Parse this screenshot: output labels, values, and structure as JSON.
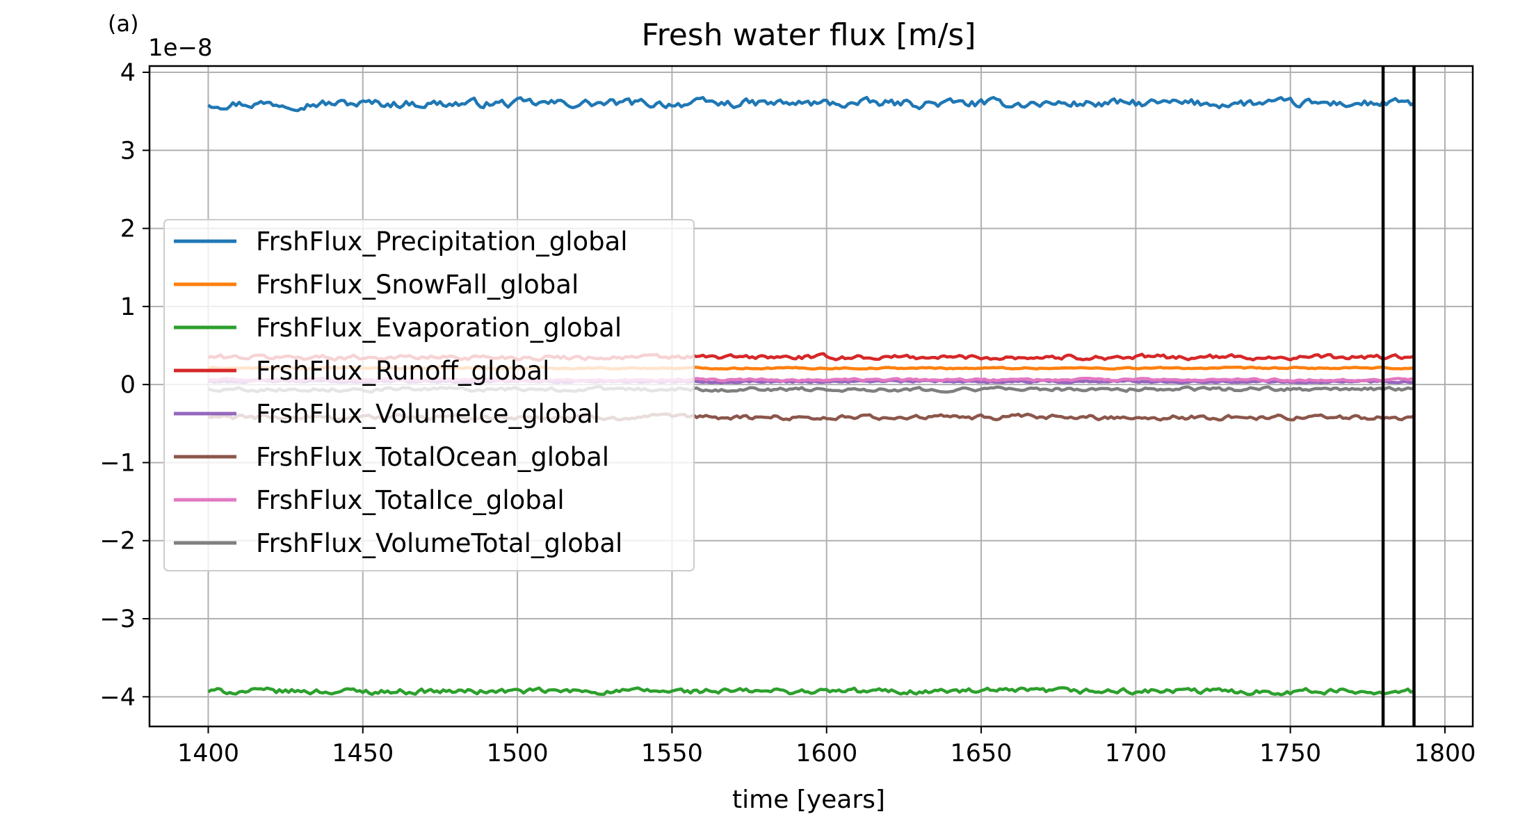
{
  "chart_data": {
    "type": "line",
    "panel_label": "(a)",
    "title": "Fresh water flux [m/s]",
    "xlabel": "time [years]",
    "ylabel": "",
    "offset_text": "1e−8",
    "xlim": [
      1381,
      1809
    ],
    "ylim": [
      -4.38,
      4.08
    ],
    "y_scale_note": "values in units of 1e-8",
    "xticks": [
      1400,
      1450,
      1500,
      1550,
      1600,
      1650,
      1700,
      1750,
      1800
    ],
    "xtick_labels": [
      "1400",
      "1450",
      "1500",
      "1550",
      "1600",
      "1650",
      "1700",
      "1750",
      "1800"
    ],
    "yticks": [
      4,
      3,
      2,
      1,
      0,
      -1,
      -2,
      -3,
      -4
    ],
    "ytick_labels": [
      "4",
      "3",
      "2",
      "1",
      "0",
      "−1",
      "−2",
      "−3",
      "−4"
    ],
    "grid": true,
    "legend_position": "center-left",
    "x_range": [
      1400,
      1790
    ],
    "vertical_lines": [
      1780,
      1790
    ],
    "series": [
      {
        "name": "FrshFlux_Precipitation_global",
        "color": "#1f77b4",
        "mean": 3.6,
        "noise": 0.045
      },
      {
        "name": "FrshFlux_SnowFall_global",
        "color": "#ff7f0e",
        "mean": 0.21,
        "noise": 0.008
      },
      {
        "name": "FrshFlux_Evaporation_global",
        "color": "#2ca02c",
        "mean": -3.93,
        "noise": 0.03
      },
      {
        "name": "FrshFlux_Runoff_global",
        "color": "#d62728",
        "mean": 0.35,
        "noise": 0.025
      },
      {
        "name": "FrshFlux_VolumeIce_global",
        "color": "#9467bd",
        "mean": 0.04,
        "noise": 0.012
      },
      {
        "name": "FrshFlux_TotalOcean_global",
        "color": "#8c564b",
        "mean": -0.42,
        "noise": 0.025
      },
      {
        "name": "FrshFlux_TotalIce_global",
        "color": "#e377c2",
        "mean": 0.06,
        "noise": 0.012
      },
      {
        "name": "FrshFlux_VolumeTotal_global",
        "color": "#7f7f7f",
        "mean": -0.06,
        "noise": 0.02
      }
    ]
  }
}
